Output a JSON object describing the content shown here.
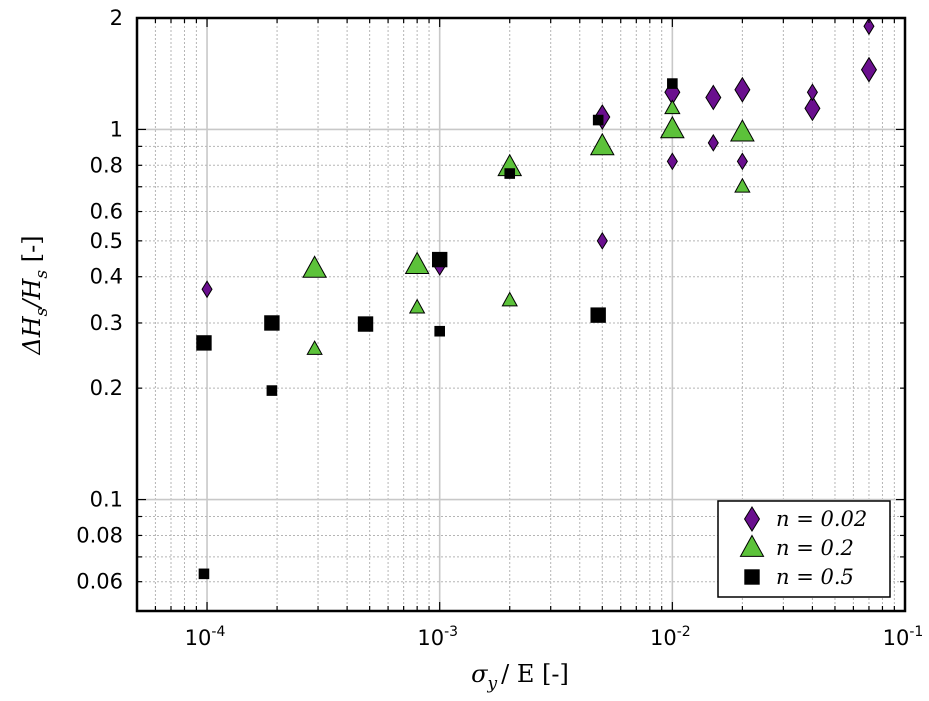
{
  "chart_data": {
    "type": "scatter",
    "xscale": "log",
    "yscale": "log",
    "xlim": [
      5e-05,
      0.1
    ],
    "ylim": [
      0.05,
      2
    ],
    "grid": true,
    "legend_position": "bottom-right",
    "xlabel": {
      "base": "σ",
      "sub": "y",
      "rest": "/ E [-]"
    },
    "ylabel": {
      "p1": "ΔH",
      "s1": "s",
      "p2": "/H",
      "s2": "s",
      "p3": " [-]"
    },
    "x_ticks": [
      {
        "value": 0.0001,
        "base": "10",
        "exp": "-4"
      },
      {
        "value": 0.001,
        "base": "10",
        "exp": "-3"
      },
      {
        "value": 0.01,
        "base": "10",
        "exp": "-2"
      },
      {
        "value": 0.1,
        "base": "10",
        "exp": "-1"
      }
    ],
    "y_ticks": [
      {
        "value": 0.06,
        "label": "0.06"
      },
      {
        "value": 0.08,
        "label": "0.08"
      },
      {
        "value": 0.1,
        "label": "0.1"
      },
      {
        "value": 0.2,
        "label": "0.2"
      },
      {
        "value": 0.3,
        "label": "0.3"
      },
      {
        "value": 0.4,
        "label": "0.4"
      },
      {
        "value": 0.5,
        "label": "0.5"
      },
      {
        "value": 0.6,
        "label": "0.6"
      },
      {
        "value": 0.8,
        "label": "0.8"
      },
      {
        "value": 1,
        "label": "1"
      },
      {
        "value": 2,
        "label": "2"
      }
    ],
    "series": [
      {
        "name": "n = 0.02",
        "marker": "diamond",
        "color": "#6a0f8e",
        "points": [
          {
            "x": 0.0001,
            "y": 0.37,
            "size": "small"
          },
          {
            "x": 0.001,
            "y": 0.425,
            "size": "small"
          },
          {
            "x": 0.005,
            "y": 1.08,
            "size": "large"
          },
          {
            "x": 0.005,
            "y": 0.5,
            "size": "small"
          },
          {
            "x": 0.01,
            "y": 1.26,
            "size": "large"
          },
          {
            "x": 0.01,
            "y": 0.82,
            "size": "small"
          },
          {
            "x": 0.015,
            "y": 1.22,
            "size": "large"
          },
          {
            "x": 0.015,
            "y": 0.92,
            "size": "small"
          },
          {
            "x": 0.02,
            "y": 1.28,
            "size": "large"
          },
          {
            "x": 0.02,
            "y": 0.82,
            "size": "small"
          },
          {
            "x": 0.04,
            "y": 1.14,
            "size": "large"
          },
          {
            "x": 0.04,
            "y": 1.26,
            "size": "small"
          },
          {
            "x": 0.07,
            "y": 1.45,
            "size": "large"
          },
          {
            "x": 0.07,
            "y": 1.9,
            "size": "small"
          }
        ]
      },
      {
        "name": "n = 0.2",
        "marker": "triangle",
        "color": "#5cc23a",
        "points": [
          {
            "x": 0.00029,
            "y": 0.42,
            "size": "large"
          },
          {
            "x": 0.00029,
            "y": 0.255,
            "size": "small"
          },
          {
            "x": 0.0008,
            "y": 0.43,
            "size": "large"
          },
          {
            "x": 0.0008,
            "y": 0.33,
            "size": "small"
          },
          {
            "x": 0.002,
            "y": 0.79,
            "size": "large"
          },
          {
            "x": 0.002,
            "y": 0.345,
            "size": "small"
          },
          {
            "x": 0.005,
            "y": 0.9,
            "size": "large"
          },
          {
            "x": 0.01,
            "y": 1.0,
            "size": "large"
          },
          {
            "x": 0.01,
            "y": 1.14,
            "size": "small"
          },
          {
            "x": 0.02,
            "y": 0.98,
            "size": "large"
          },
          {
            "x": 0.02,
            "y": 0.7,
            "size": "small"
          }
        ]
      },
      {
        "name": "n = 0.5",
        "marker": "square",
        "color": "#000000",
        "points": [
          {
            "x": 9.7e-05,
            "y": 0.265,
            "size": "large"
          },
          {
            "x": 9.7e-05,
            "y": 0.063,
            "size": "small"
          },
          {
            "x": 0.00019,
            "y": 0.3,
            "size": "large"
          },
          {
            "x": 0.00019,
            "y": 0.197,
            "size": "small"
          },
          {
            "x": 0.00048,
            "y": 0.298,
            "size": "large"
          },
          {
            "x": 0.001,
            "y": 0.445,
            "size": "large"
          },
          {
            "x": 0.001,
            "y": 0.285,
            "size": "small"
          },
          {
            "x": 0.002,
            "y": 0.76,
            "size": "small"
          },
          {
            "x": 0.0048,
            "y": 0.315,
            "size": "large"
          },
          {
            "x": 0.0048,
            "y": 1.06,
            "size": "small"
          },
          {
            "x": 0.01,
            "y": 1.33,
            "size": "small"
          }
        ]
      }
    ]
  }
}
